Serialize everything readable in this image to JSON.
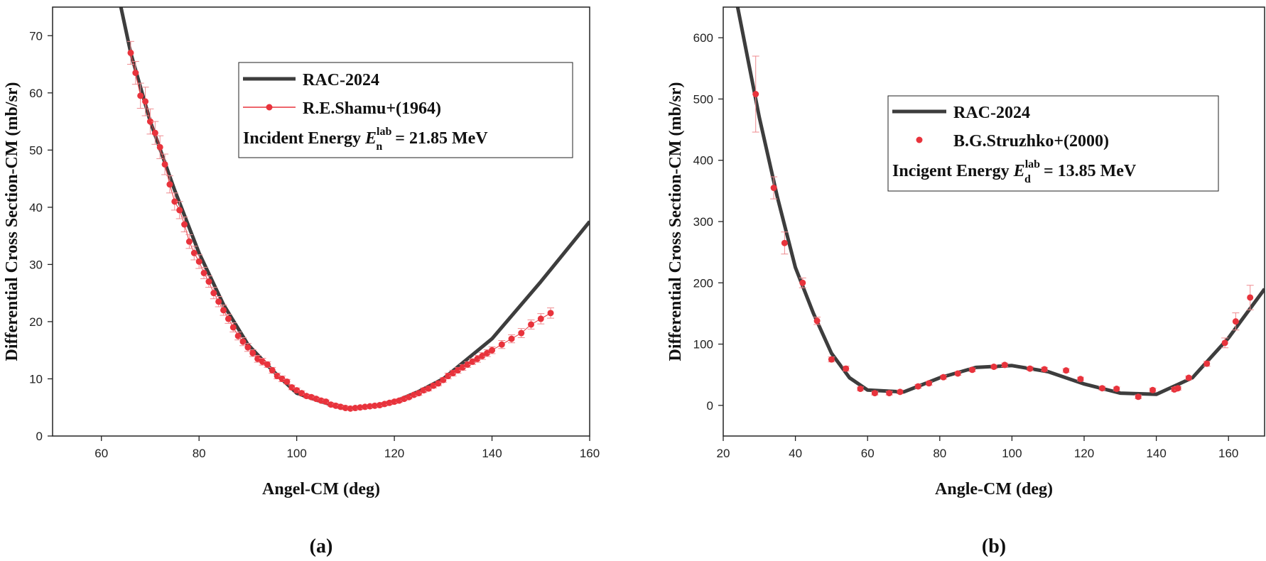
{
  "chart_data": [
    {
      "type": "line+scatter",
      "panel_label": "(a)",
      "xlabel": "Angel-CM (deg)",
      "ylabel": "Differential Cross Section-CM (mb/sr)",
      "xlim": [
        50,
        160
      ],
      "ylim": [
        0,
        75
      ],
      "xticks": [
        60,
        80,
        100,
        120,
        140,
        160
      ],
      "yticks": [
        0,
        10,
        20,
        30,
        40,
        50,
        60,
        70
      ],
      "legend_position": "top-right",
      "legend": {
        "line_label": "RAC-2024",
        "data_label": "R.E.Shamu+(1964)",
        "energy_prefix": "Incident Energy ",
        "energy_symbol": "E",
        "energy_sub": "n",
        "energy_sup": "lab",
        "energy_value": " = 21.85 MeV"
      },
      "series": [
        {
          "name": "RAC-2024",
          "kind": "line",
          "x": [
            64,
            66,
            70,
            75,
            80,
            85,
            90,
            95,
            100,
            105,
            110,
            115,
            120,
            125,
            130,
            140,
            150,
            160
          ],
          "y": [
            75,
            67,
            55,
            43,
            32,
            23,
            16,
            11.5,
            7.5,
            6.0,
            4.8,
            5.2,
            6.0,
            7.8,
            10.0,
            17.0,
            27.0,
            37.5
          ]
        },
        {
          "name": "R.E.Shamu+(1964)",
          "kind": "scatter",
          "x": [
            66,
            67,
            68,
            69,
            70,
            71,
            72,
            73,
            74,
            75,
            76,
            77,
            78,
            79,
            80,
            81,
            82,
            83,
            84,
            85,
            86,
            87,
            88,
            89,
            90,
            91,
            92,
            93,
            94,
            95,
            96,
            97,
            98,
            99,
            100,
            101,
            102,
            103,
            104,
            105,
            106,
            107,
            108,
            109,
            110,
            111,
            112,
            113,
            114,
            115,
            116,
            117,
            118,
            119,
            120,
            121,
            122,
            123,
            124,
            125,
            126,
            127,
            128,
            129,
            130,
            131,
            132,
            133,
            134,
            135,
            136,
            137,
            138,
            139,
            140,
            142,
            144,
            146,
            148,
            150,
            152
          ],
          "y": [
            67,
            63.5,
            59.5,
            58.5,
            55,
            53,
            50.5,
            47.5,
            44,
            41,
            39.5,
            37,
            34,
            32,
            30.5,
            28.5,
            27,
            25,
            23.5,
            22,
            20.5,
            19,
            17.5,
            16.5,
            15.5,
            14.5,
            13.5,
            13,
            12.5,
            11.5,
            10.5,
            10,
            9.5,
            8.5,
            8,
            7.5,
            7,
            6.8,
            6.5,
            6.2,
            6,
            5.5,
            5.3,
            5.1,
            4.9,
            4.8,
            4.9,
            5.0,
            5.1,
            5.2,
            5.3,
            5.4,
            5.6,
            5.8,
            6.0,
            6.2,
            6.5,
            6.8,
            7.2,
            7.5,
            8.0,
            8.3,
            8.8,
            9.2,
            9.8,
            10.5,
            11.0,
            11.5,
            12.0,
            12.5,
            13.0,
            13.5,
            14.0,
            14.5,
            15.0,
            16.0,
            17.0,
            18.0,
            19.5,
            20.5,
            21.5
          ],
          "yerr": [
            2,
            2,
            2.2,
            2.5,
            2.2,
            2,
            2,
            1.8,
            1.5,
            1.5,
            1.5,
            1.3,
            1.2,
            1.2,
            1.2,
            1.0,
            1.0,
            1.0,
            0.9,
            0.9,
            0.8,
            0.8,
            0.7,
            0.7,
            0.7,
            0.6,
            0.6,
            0.6,
            0.5,
            0.5,
            0.5,
            0.5,
            0.4,
            0.4,
            0.4,
            0.4,
            0.3,
            0.3,
            0.3,
            0.3,
            0.3,
            0.3,
            0.3,
            0.3,
            0.3,
            0.3,
            0.3,
            0.3,
            0.3,
            0.3,
            0.3,
            0.3,
            0.3,
            0.3,
            0.3,
            0.3,
            0.3,
            0.3,
            0.3,
            0.4,
            0.4,
            0.4,
            0.4,
            0.4,
            0.4,
            0.5,
            0.5,
            0.5,
            0.5,
            0.5,
            0.5,
            0.6,
            0.6,
            0.6,
            0.6,
            0.7,
            0.7,
            0.8,
            0.8,
            0.9,
            0.9
          ]
        }
      ]
    },
    {
      "type": "line+scatter",
      "panel_label": "(b)",
      "xlabel": "Angle-CM (deg)",
      "ylabel": "Differential Cross Section-CM (mb/sr)",
      "xlim": [
        20,
        170
      ],
      "ylim": [
        -50,
        650
      ],
      "xticks": [
        20,
        40,
        60,
        80,
        100,
        120,
        140,
        160
      ],
      "yticks": [
        0,
        100,
        200,
        300,
        400,
        500,
        600
      ],
      "legend_position": "top-right",
      "legend": {
        "line_label": "RAC-2024",
        "data_label": "B.G.Struzhko+(2000)",
        "energy_prefix": "Incigent Energy ",
        "energy_symbol": "E",
        "energy_sub": "d",
        "energy_sup": "lab",
        "energy_value": " = 13.85 MeV"
      },
      "series": [
        {
          "name": "RAC-2024",
          "kind": "line",
          "x": [
            24,
            30,
            35,
            40,
            45,
            50,
            55,
            60,
            70,
            80,
            90,
            100,
            110,
            120,
            130,
            140,
            150,
            160,
            170
          ],
          "y": [
            650,
            470,
            340,
            225,
            150,
            85,
            45,
            25,
            22,
            45,
            62,
            65,
            55,
            35,
            20,
            18,
            45,
            110,
            190
          ]
        },
        {
          "name": "B.G.Struzhko+(2000)",
          "kind": "scatter",
          "x": [
            29,
            34,
            37,
            42,
            46,
            50,
            54,
            58,
            62,
            66,
            69,
            74,
            77,
            81,
            85,
            89,
            95,
            98,
            105,
            109,
            115,
            119,
            125,
            129,
            135,
            139,
            145,
            146,
            149,
            154,
            159,
            162,
            166
          ],
          "y": [
            508,
            355,
            265,
            200,
            138,
            75,
            60,
            27,
            20,
            20,
            22,
            31,
            36,
            46,
            52,
            58,
            63,
            66,
            60,
            59,
            57,
            43,
            28,
            27,
            14,
            25,
            26,
            28,
            45,
            68,
            102,
            137,
            176
          ],
          "yerr": [
            62,
            18,
            18,
            8,
            6,
            4,
            4,
            3,
            3,
            3,
            3,
            3,
            3,
            3,
            3,
            3,
            3,
            3,
            3,
            3,
            3,
            3,
            3,
            3,
            3,
            3,
            3,
            3,
            3,
            4,
            8,
            14,
            20
          ]
        }
      ]
    }
  ]
}
